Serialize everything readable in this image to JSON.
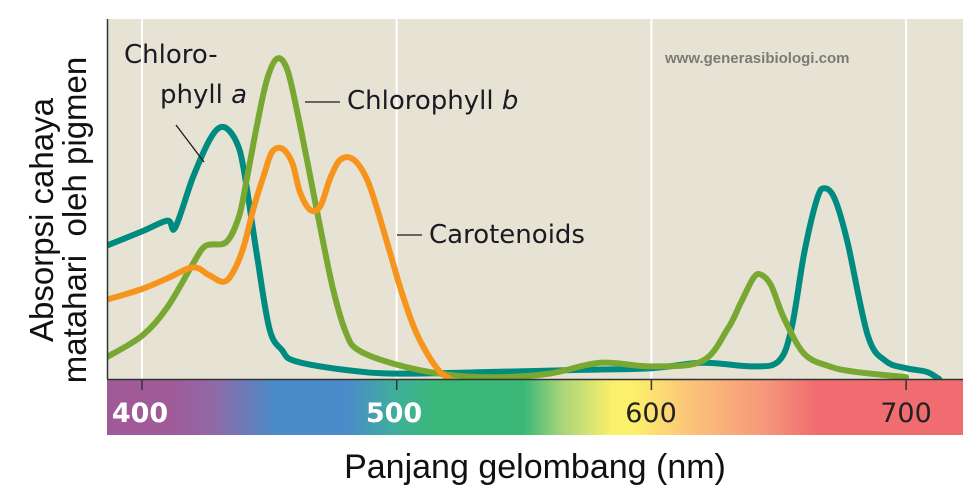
{
  "chart_data": {
    "type": "line",
    "title": "",
    "xlabel": "Panjang gelombang (nm)",
    "ylabel": "Absorpsi cahaya matahari oleh pigmen",
    "ylabel_lines": [
      "Absorpsi cahaya",
      "matahari  oleh pigmen"
    ],
    "xlim": [
      386,
      723
    ],
    "ylim": [
      0,
      1
    ],
    "x_ticks": [
      400,
      500,
      600,
      700
    ],
    "y_ticks": [],
    "grid": {
      "vertical": true,
      "horizontal": false
    },
    "legend_position": "inline annotations",
    "series": [
      {
        "name": "Chlorophyll a",
        "color": "#008B80",
        "points": [
          [
            386,
            0.37
          ],
          [
            400,
            0.41
          ],
          [
            410,
            0.44
          ],
          [
            413,
            0.42
          ],
          [
            420,
            0.56
          ],
          [
            427,
            0.67
          ],
          [
            432,
            0.7
          ],
          [
            437,
            0.66
          ],
          [
            440,
            0.58
          ],
          [
            445,
            0.35
          ],
          [
            450,
            0.14
          ],
          [
            455,
            0.08
          ],
          [
            460,
            0.05
          ],
          [
            480,
            0.025
          ],
          [
            500,
            0.015
          ],
          [
            540,
            0.02
          ],
          [
            570,
            0.025
          ],
          [
            600,
            0.03
          ],
          [
            620,
            0.045
          ],
          [
            640,
            0.035
          ],
          [
            650,
            0.05
          ],
          [
            655,
            0.14
          ],
          [
            660,
            0.35
          ],
          [
            665,
            0.5
          ],
          [
            668,
            0.53
          ],
          [
            672,
            0.5
          ],
          [
            677,
            0.38
          ],
          [
            685,
            0.12
          ],
          [
            692,
            0.05
          ],
          [
            700,
            0.03
          ],
          [
            708,
            0.02
          ],
          [
            713,
            0.0
          ]
        ]
      },
      {
        "name": "Chlorophyll b",
        "color": "#78A832",
        "points": [
          [
            386,
            0.06
          ],
          [
            400,
            0.12
          ],
          [
            410,
            0.2
          ],
          [
            420,
            0.32
          ],
          [
            425,
            0.37
          ],
          [
            433,
            0.38
          ],
          [
            438,
            0.45
          ],
          [
            441,
            0.55
          ],
          [
            445,
            0.7
          ],
          [
            449,
            0.83
          ],
          [
            453,
            0.89
          ],
          [
            457,
            0.86
          ],
          [
            461,
            0.74
          ],
          [
            465,
            0.6
          ],
          [
            470,
            0.42
          ],
          [
            475,
            0.25
          ],
          [
            480,
            0.13
          ],
          [
            485,
            0.08
          ],
          [
            500,
            0.04
          ],
          [
            520,
            0.012
          ],
          [
            540,
            0.005
          ],
          [
            560,
            0.015
          ],
          [
            580,
            0.045
          ],
          [
            600,
            0.035
          ],
          [
            620,
            0.05
          ],
          [
            630,
            0.14
          ],
          [
            635,
            0.21
          ],
          [
            640,
            0.28
          ],
          [
            643,
            0.29
          ],
          [
            647,
            0.26
          ],
          [
            652,
            0.17
          ],
          [
            660,
            0.07
          ],
          [
            670,
            0.035
          ],
          [
            680,
            0.02
          ],
          [
            700,
            0.005
          ]
        ]
      },
      {
        "name": "Carotenoids",
        "color": "#F7941D",
        "points": [
          [
            386,
            0.22
          ],
          [
            400,
            0.25
          ],
          [
            410,
            0.28
          ],
          [
            420,
            0.31
          ],
          [
            426,
            0.29
          ],
          [
            432,
            0.27
          ],
          [
            436,
            0.3
          ],
          [
            440,
            0.37
          ],
          [
            444,
            0.48
          ],
          [
            448,
            0.57
          ],
          [
            451,
            0.63
          ],
          [
            455,
            0.64
          ],
          [
            459,
            0.6
          ],
          [
            462,
            0.52
          ],
          [
            466,
            0.47
          ],
          [
            470,
            0.48
          ],
          [
            474,
            0.56
          ],
          [
            478,
            0.61
          ],
          [
            483,
            0.61
          ],
          [
            488,
            0.56
          ],
          [
            492,
            0.48
          ],
          [
            497,
            0.36
          ],
          [
            502,
            0.24
          ],
          [
            507,
            0.14
          ],
          [
            512,
            0.07
          ],
          [
            517,
            0.02
          ],
          [
            521,
            0.0
          ]
        ]
      }
    ],
    "annotations": [
      {
        "text": "Chloro-",
        "target": "Chlorophyll a"
      },
      {
        "text": "phyll",
        "italic_suffix": "a",
        "target": "Chlorophyll a"
      },
      {
        "text": "Chlorophyll",
        "italic_suffix": "b",
        "target": "Chlorophyll b"
      },
      {
        "text": "Carotenoids",
        "target": "Carotenoids"
      }
    ],
    "spectrum_bar": {
      "stops": [
        {
          "nm": 386,
          "color": "#A05A97"
        },
        {
          "nm": 410,
          "color": "#A05A97"
        },
        {
          "nm": 428,
          "color": "#9169A6"
        },
        {
          "nm": 452,
          "color": "#4A8BC9"
        },
        {
          "nm": 480,
          "color": "#4A8BC9"
        },
        {
          "nm": 500,
          "color": "#3FAF9A"
        },
        {
          "nm": 516,
          "color": "#3BB878"
        },
        {
          "nm": 550,
          "color": "#3BB878"
        },
        {
          "nm": 565,
          "color": "#A9D57A"
        },
        {
          "nm": 585,
          "color": "#FCF06A"
        },
        {
          "nm": 593,
          "color": "#FCF06A"
        },
        {
          "nm": 615,
          "color": "#FBC47A"
        },
        {
          "nm": 645,
          "color": "#F5977A"
        },
        {
          "nm": 665,
          "color": "#F06C70"
        },
        {
          "nm": 723,
          "color": "#F06C70"
        }
      ]
    }
  },
  "labels": {
    "watermark": "www.generasibiologi.com",
    "chl_a_line1": "Chloro-",
    "chl_a_line2": "phyll ",
    "chl_a_italic": "a",
    "chl_b": "Chlorophyll ",
    "chl_b_italic": "b",
    "carotenoids": "Carotenoids",
    "xlabel": "Panjang gelombang (nm)",
    "ylabel_line1": "Absorpsi cahaya",
    "ylabel_line2": "matahari  oleh pigmen",
    "tick_400": "400",
    "tick_500": "500",
    "tick_600": "600",
    "tick_700": "700"
  },
  "colors": {
    "plot_background": "#E6E3D4",
    "gridline": "#FFFFFF",
    "axis": "#333333"
  }
}
